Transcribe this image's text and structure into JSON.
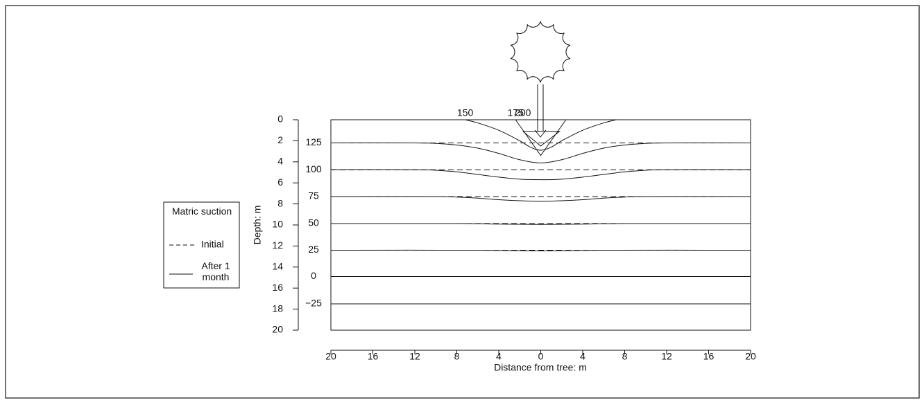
{
  "chart_data": {
    "type": "contour",
    "ylabel": "Depth: m",
    "xlabel": "Distance from tree: m",
    "ylim": [
      0,
      20
    ],
    "yticks": [
      0,
      2,
      4,
      6,
      8,
      10,
      12,
      14,
      16,
      18,
      20
    ],
    "xlim": [
      -20,
      20
    ],
    "xticks": [
      {
        "value": -20,
        "label": "20"
      },
      {
        "value": -16,
        "label": "16"
      },
      {
        "value": -12,
        "label": "12"
      },
      {
        "value": -8,
        "label": "8"
      },
      {
        "value": -4,
        "label": "4"
      },
      0,
      4,
      8,
      12,
      16,
      20
    ],
    "legend": {
      "title": "Matric suction",
      "initial": "Initial",
      "after": "After 1 month"
    },
    "contours": [
      {
        "label": "150",
        "after": {
          "x": [
            -7.2,
            -6,
            -4,
            -2,
            -1,
            0,
            1,
            2,
            4,
            6,
            7.2
          ],
          "depth": [
            0,
            0.3,
            1.0,
            2.0,
            2.6,
            2.9,
            2.6,
            2.0,
            1.0,
            0.3,
            0
          ]
        }
      },
      {
        "label": "175",
        "after": {
          "x": [
            -2.4,
            0,
            2.4
          ],
          "depth": [
            0,
            3.4,
            0
          ]
        }
      },
      {
        "label": "200",
        "after": {
          "x": [
            -1.7,
            1.8,
            0,
            -1.7
          ],
          "depth": [
            1.1,
            1.1,
            2.5,
            1.1
          ]
        }
      },
      {
        "label": "125",
        "initial": 2.2,
        "after": {
          "x": [
            -20,
            -12,
            -10,
            -8,
            -6,
            -4,
            -2,
            0,
            2,
            4,
            6,
            8,
            10,
            12,
            20
          ],
          "depth": [
            2.2,
            2.2,
            2.25,
            2.4,
            2.7,
            3.2,
            3.8,
            4.1,
            3.8,
            3.2,
            2.7,
            2.4,
            2.25,
            2.2,
            2.2
          ]
        }
      },
      {
        "label": "100",
        "initial": 4.75,
        "after": {
          "x": [
            -20,
            -12,
            -10,
            -8,
            -6,
            -4,
            -2,
            0,
            2,
            4,
            6,
            8,
            10,
            12,
            20
          ],
          "depth": [
            4.75,
            4.75,
            4.8,
            4.95,
            5.2,
            5.45,
            5.65,
            5.7,
            5.65,
            5.45,
            5.2,
            4.95,
            4.8,
            4.75,
            4.75
          ]
        }
      },
      {
        "label": "75",
        "initial": 7.3,
        "after": {
          "x": [
            -20,
            -10,
            -8,
            -6,
            -4,
            -2,
            0,
            2,
            4,
            6,
            8,
            10,
            20
          ],
          "depth": [
            7.3,
            7.3,
            7.35,
            7.45,
            7.6,
            7.7,
            7.75,
            7.7,
            7.6,
            7.45,
            7.35,
            7.3,
            7.3
          ]
        }
      },
      {
        "label": "50",
        "initial": 9.87,
        "after": {
          "x": [
            -20,
            -8,
            -4,
            0,
            4,
            8,
            20
          ],
          "depth": [
            9.87,
            9.87,
            9.92,
            9.95,
            9.92,
            9.87,
            9.87
          ]
        }
      },
      {
        "label": "25",
        "initial": 12.4,
        "after": {
          "x": [
            -20,
            -6,
            0,
            6,
            20
          ],
          "depth": [
            12.4,
            12.4,
            12.47,
            12.4,
            12.4
          ]
        }
      },
      {
        "label": "0",
        "initial": 14.9,
        "after": {
          "x": [
            -20,
            20
          ],
          "depth": [
            14.9,
            14.9
          ]
        }
      },
      {
        "label": "−25",
        "after": {
          "x": [
            -20,
            20
          ],
          "depth": [
            17.5,
            17.5
          ]
        }
      }
    ]
  }
}
